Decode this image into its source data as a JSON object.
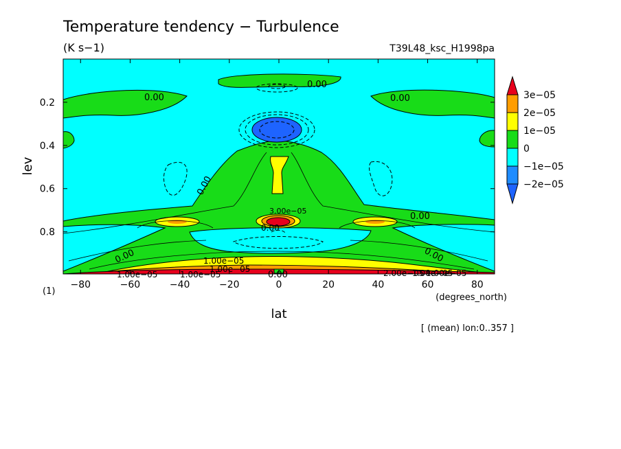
{
  "chart_data": {
    "type": "heatmap",
    "title": "Temperature tendency − Turbulence",
    "units": "(K s−1)",
    "run_id": "T39L48_ksc_H1998pa",
    "xlabel": "lat",
    "xunits": "(degrees_north)",
    "ylabel": "lev",
    "yunits": "(1)",
    "averaging_note": "[ (mean) lon:0..357 ]",
    "xlim": [
      -87,
      87
    ],
    "ylim": [
      0,
      0.995
    ],
    "y_inverted": true,
    "x_ticks": [
      -80,
      -60,
      -40,
      -20,
      0,
      20,
      40,
      60,
      80
    ],
    "y_ticks": [
      0.2,
      0.4,
      0.6,
      0.8
    ],
    "y_tick_labels": [
      "0.2",
      "0.4",
      "0.6",
      "0.8"
    ],
    "colorbar": {
      "labels": [
        "3e−05",
        "2e−05",
        "1e−05",
        "0",
        "−1e−05",
        "−2e−05"
      ],
      "levels": [
        3e-05,
        2e-05,
        1e-05,
        0,
        -1e-05,
        -2e-05
      ],
      "colors": [
        "#e8001c",
        "#ff9d00",
        "#ffff00",
        "#18dc18",
        "#00ffff",
        "#1e8cff",
        "#1e64ff"
      ]
    },
    "regions": [
      {
        "id": "upper-band-left",
        "level": "0 to 1e−05",
        "lat": [
          -87,
          -45
        ],
        "lev": [
          0.17,
          0.28
        ]
      },
      {
        "id": "upper-band-right",
        "level": "0 to 1e−05",
        "lat": [
          40,
          87
        ],
        "lev": [
          0.17,
          0.28
        ]
      },
      {
        "id": "top-center",
        "level": "0 to 1e−05",
        "lat": [
          -30,
          30
        ],
        "lev": [
          0.07,
          0.12
        ]
      },
      {
        "id": "center-plume",
        "level": "0 to 1e−05",
        "lat": [
          -60,
          60
        ],
        "lev": [
          0.33,
          0.78
        ]
      },
      {
        "id": "midlat-ribbon",
        "level": "0 to 1e−05",
        "lat": [
          -87,
          87
        ],
        "lev": [
          0.72,
          0.8
        ]
      },
      {
        "id": "lower-wedge",
        "level": "0 to 1e−05",
        "lat": [
          -87,
          87
        ],
        "lev": [
          0.78,
          0.995
        ]
      },
      {
        "id": "upper-blue-core",
        "level": "below −1e−05",
        "lat": [
          -12,
          12
        ],
        "lev": [
          0.25,
          0.34
        ]
      },
      {
        "id": "center-yellow",
        "level": "1e−05 to 2e−05",
        "lat": [
          -4,
          6
        ],
        "lev": [
          0.44,
          0.62
        ]
      },
      {
        "id": "left-yellow-eye",
        "level": "1e−05 to 2e−05",
        "lat": [
          -50,
          -33
        ],
        "lev": [
          0.74,
          0.78
        ]
      },
      {
        "id": "right-yellow-eye",
        "level": "1e−05 to 2e−05",
        "lat": [
          33,
          50
        ],
        "lev": [
          0.74,
          0.78
        ]
      },
      {
        "id": "center-red",
        "level": "above 3e−05",
        "lat": [
          -6,
          6
        ],
        "lev": [
          0.74,
          0.78
        ]
      },
      {
        "id": "surface-yellow",
        "level": "1e−05 to 2e−05",
        "lat": [
          -87,
          87
        ],
        "lev": [
          0.93,
          0.99
        ]
      },
      {
        "id": "surface-red",
        "level": "above 3e−05",
        "lat": [
          -87,
          87
        ],
        "lev": [
          0.975,
          0.995
        ]
      }
    ],
    "contour_labels": [
      "0.00",
      "0.00",
      "0.00",
      "0.00",
      "0.00",
      "0.00",
      "0.00",
      "0.00",
      "1.00e−05",
      "1.00e−05",
      "1.00e−05",
      "1.00e−05",
      "2.00e−05",
      "1.00e−05",
      "0.00",
      "3.00e−05",
      "1.00e−05"
    ]
  }
}
